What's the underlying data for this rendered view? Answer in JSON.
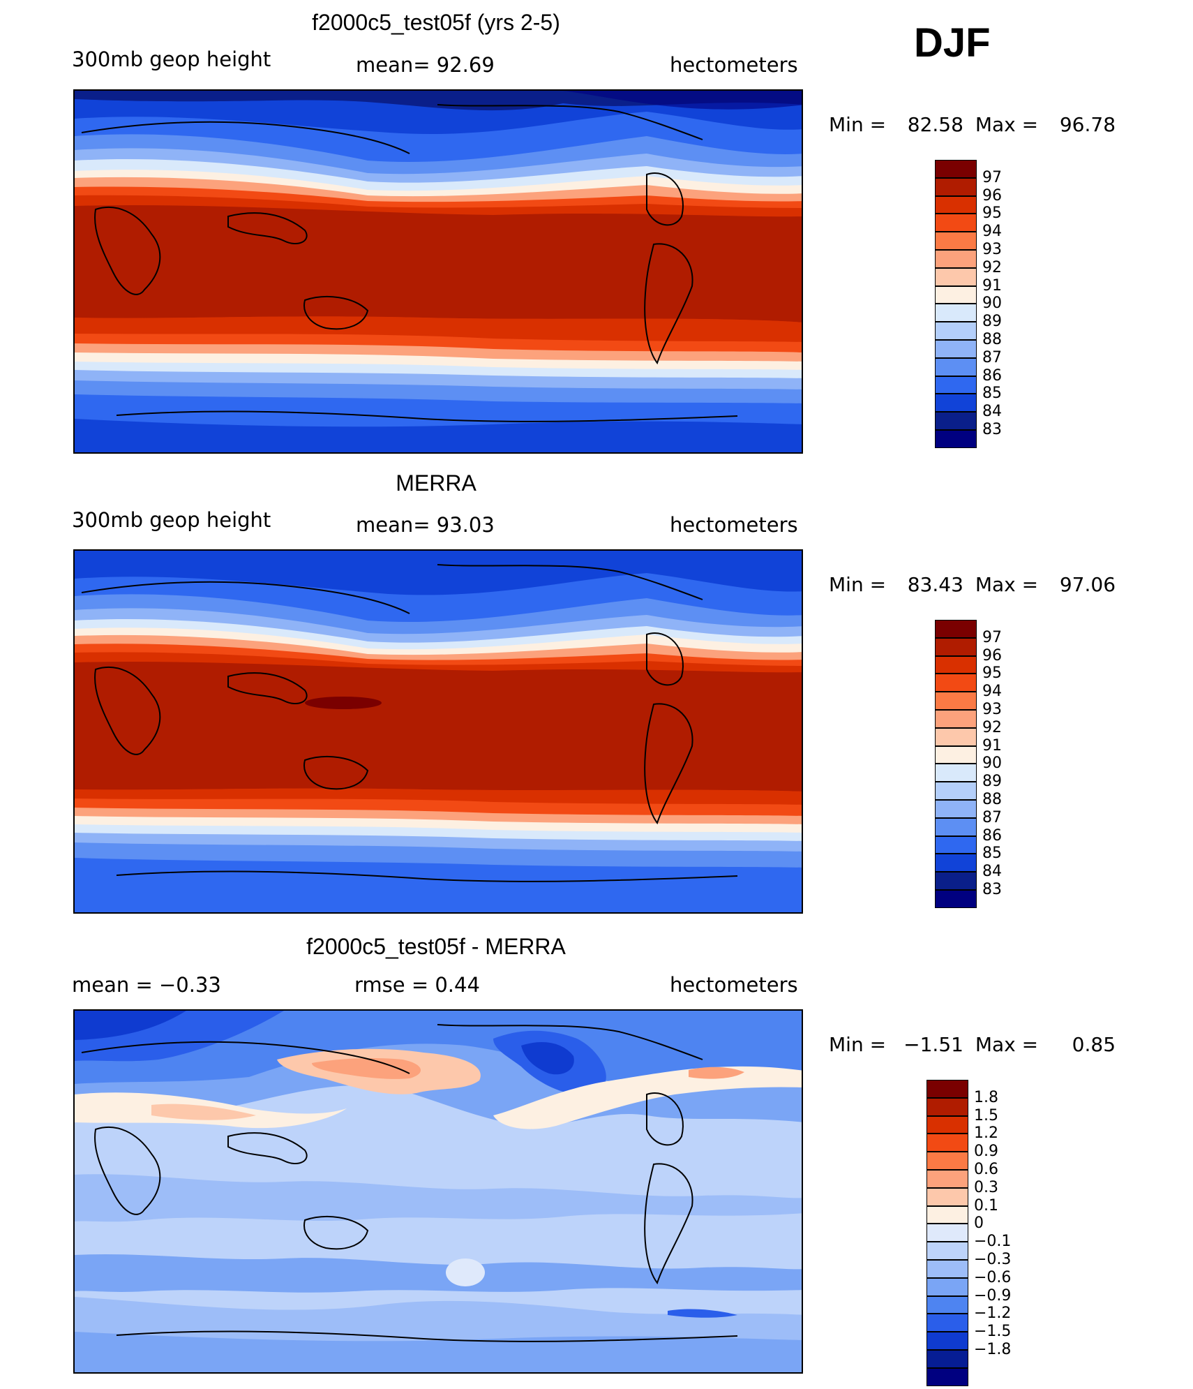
{
  "season": "DJF",
  "panels": [
    {
      "title": "f2000c5_test05f (yrs 2-5)",
      "left_label": "300mb  geop  height",
      "center_label": "mean=   92.69",
      "right_label": "hectometers",
      "min_label": "Min  =",
      "min_value": "82.58",
      "max_label": "Max  =",
      "max_value": "96.78",
      "colorbar_levels": [
        "97",
        "96",
        "95",
        "94",
        "93",
        "92",
        "91",
        "90",
        "89",
        "88",
        "87",
        "86",
        "85",
        "84",
        "83"
      ]
    },
    {
      "title": "MERRA",
      "left_label": "300mb  geop  height",
      "center_label": "mean=   93.03",
      "right_label": "hectometers",
      "min_label": "Min  =",
      "min_value": "83.43",
      "max_label": "Max  =",
      "max_value": "97.06",
      "colorbar_levels": [
        "97",
        "96",
        "95",
        "94",
        "93",
        "92",
        "91",
        "90",
        "89",
        "88",
        "87",
        "86",
        "85",
        "84",
        "83"
      ]
    },
    {
      "title": "f2000c5_test05f - MERRA",
      "left_label": "mean  =    −0.33",
      "center_label": "rmse  =     0.44",
      "right_label": "hectometers",
      "min_label": "Min  =",
      "min_value": "−1.51",
      "max_label": "Max  =",
      "max_value": "0.85",
      "colorbar_levels": [
        "1.8",
        "1.5",
        "1.2",
        "0.9",
        "0.6",
        "0.3",
        "0.1",
        "0",
        "−0.1",
        "−0.3",
        "−0.6",
        "−0.9",
        "−1.2",
        "−1.5",
        "−1.8"
      ]
    }
  ],
  "colors": {
    "height_scale": [
      "#7a0000",
      "#b01c00",
      "#d93000",
      "#f24a14",
      "#fb7a45",
      "#fca27c",
      "#fdc8ab",
      "#fdf0e2",
      "#d9e9fb",
      "#b4cffa",
      "#8fb3f7",
      "#5d8ff3",
      "#2f68f0",
      "#1143d8",
      "#0a1f8a",
      "#000080"
    ],
    "diff_scale": [
      "#7a0000",
      "#b01c00",
      "#d93000",
      "#f24a14",
      "#fb7a45",
      "#fca27c",
      "#fdc8ab",
      "#fdf0e2",
      "#dfe9fb",
      "#bdd3fa",
      "#9dbdf8",
      "#7aa5f5",
      "#4e84f1",
      "#2a5eea",
      "#0f3bd0",
      "#061d94",
      "#000080"
    ],
    "coastline": "#000000"
  }
}
